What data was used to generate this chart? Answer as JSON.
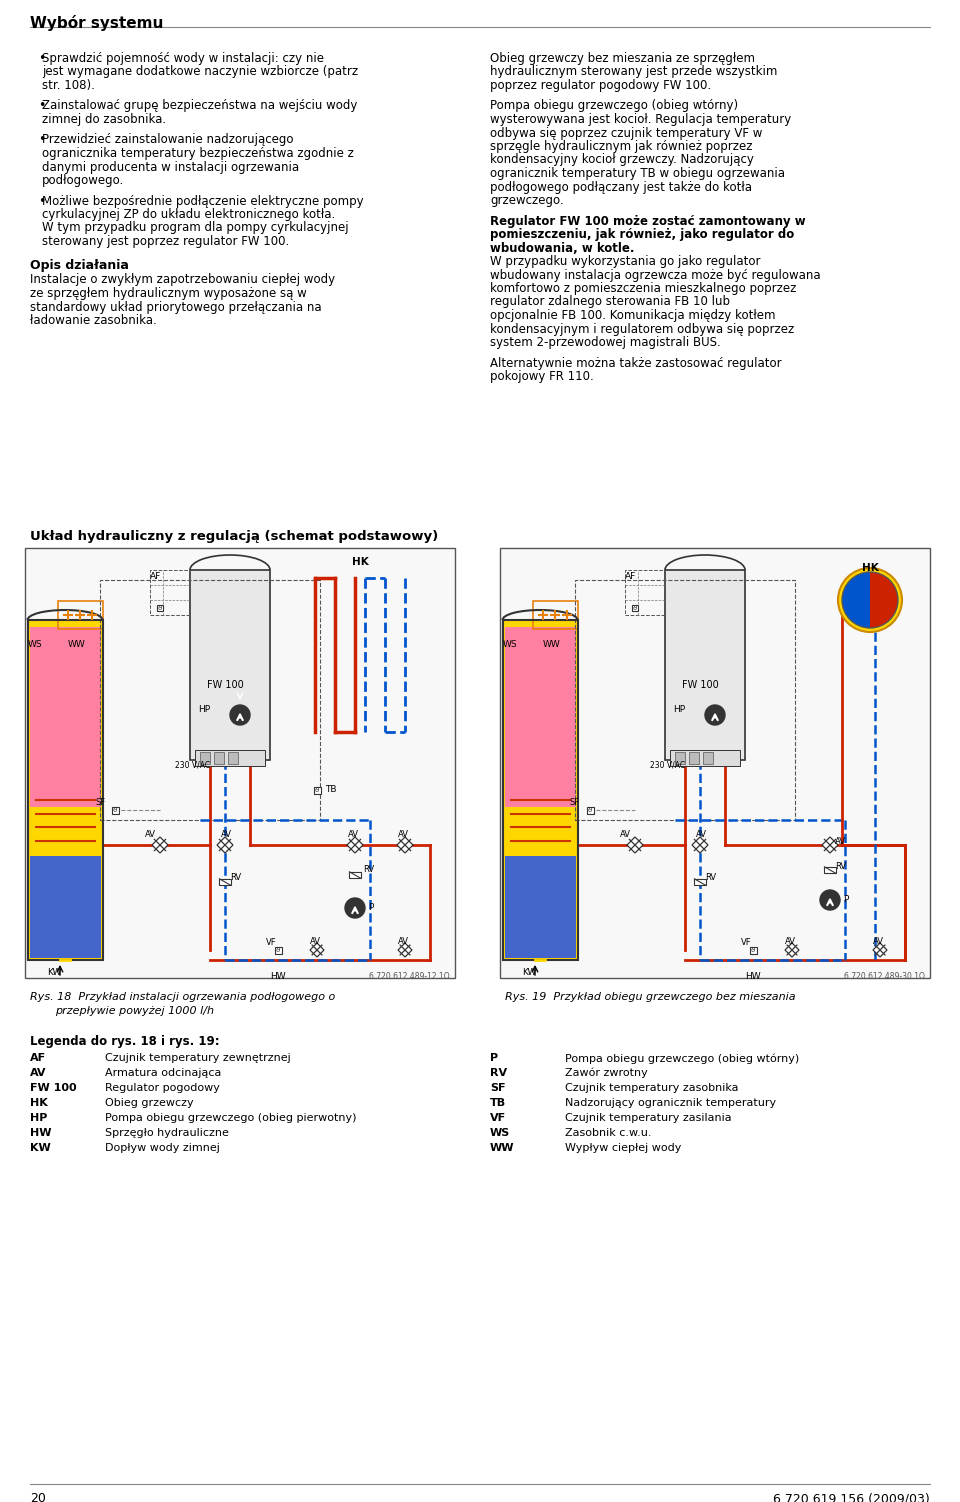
{
  "page_title": "Wybór systemu",
  "page_num_left": "20",
  "page_num_right": "6 720 619 156 (2009/03)",
  "background_color": "#ffffff",
  "text_color": "#1a1a1a",
  "left_column_bullets": [
    "Sprawdzić pojemność wody w instalacji: czy nie jest wymagane dodatkowe naczynie wzbiorcze (patrz str. 108).",
    "Zainstalować grupę bezpieczeństwa na wejściu wody zimnej do zasobnika.",
    "Przewidzieć zainstalowanie nadzorującego ogranicznika temperatury bezpieczeństwa zgodnie z danymi producenta w instalacji ogrzewania podłogowego.",
    "Możliwe bezpośrednie podłączenie elektryczne pompy cyrkulacyjnej ZP do układu elektronicznego kotła. W tym przypadku program dla pompy cyrkulacyjnej sterowany jest poprzez regulator FW 100."
  ],
  "left_column_section": "Opis działania",
  "left_column_section_text": "Instalacje o zwykłym zapotrzebowaniu ciepłej wody ze sprzęgłem hydraulicznym wyposażone są w standardowy układ priorytowego przełączania na ładowanie zasobnika.",
  "right_column_text_1": "Obieg grzewczy bez mieszania ze sprzęgłem hydraulicznym sterowany jest przede wszystkim poprzez regulator pogodowy FW 100.",
  "right_column_text_2": "Pompa obiegu grzewczego (obieg wtórny) wysterowywana jest kocioł. Regulacja temperatury odbywa się poprzez czujnik temperatury VF w sprzęgle hydraulicznym jak również poprzez kondensacyjny kocioł grzewczy. Nadzorujący ogranicznik temperatury TB w obiegu ogrzewania podłogowego podłączany jest także do kotła grzewczego.",
  "right_column_bold_text": "Regulator FW 100 może zostać zamontowany w pomieszczeniu, jak również, jako regulator do wbudowania, w kotle.",
  "right_column_bold_text_2": "W przypadku wykorzystania go jako regulator wbudowany instalacja ogrzewcza może być regulowana komfortowo z pomieszczenia mieszkalnego poprzez regulator zdalnego sterowania FB 10 lub opcjonalnie FB 100. Komunikacja między kotłem kondensacyjnym i regulatorem odbywa się poprzez system 2-przewodowej magistrali BUS.",
  "right_column_text_3": "Alternatywnie można także zastosować regulator pokojowy FR 110.",
  "diagram_title": "Układ hydrauliczny z regulacją (schemat podstawowy)",
  "fig18_caption_line1": "Rys. 18  Przykład instalacji ogrzewania podłogowego o",
  "fig18_caption_line2": "przepływie powyżej 1000 l/h",
  "fig19_caption": "Rys. 19  Przykład obiegu grzewczego bez mieszania",
  "fig_code": "6 720 612 489-12.1O",
  "fig_code2": "6 720 612 489-30.1O",
  "legend_title": "Legenda do rys. 18 i rys. 19:",
  "legend_items": [
    [
      "AF",
      "Czujnik temperatury zewnętrznej"
    ],
    [
      "AV",
      "Armatura odcinająca"
    ],
    [
      "FW 100",
      "Regulator pogodowy"
    ],
    [
      "HK",
      "Obieg grzewczy"
    ],
    [
      "HP",
      "Pompa obiegu grzewczego (obieg pierwotny)"
    ],
    [
      "HW",
      "Sprzęgło hydrauliczne"
    ],
    [
      "KW",
      "Dopływ wody zimnej"
    ],
    [
      "P",
      "Pompa obiegu grzewczego (obieg wtórny)"
    ],
    [
      "RV",
      "Zawór zwrotny"
    ],
    [
      "SF",
      "Czujnik temperatury zasobnika"
    ],
    [
      "TB",
      "Nadzorujący ogranicznik temperatury"
    ],
    [
      "VF",
      "Czujnik temperatury zasilania"
    ],
    [
      "WS",
      "Zasobnik c.w.u."
    ],
    [
      "WW",
      "Wypływ ciepłej wody"
    ]
  ],
  "orange_color": "#e8820c",
  "red_color": "#cc2200",
  "blue_color": "#0055cc",
  "dark_color": "#333333",
  "pipe_red": "#cc2200",
  "pipe_blue": "#0055cc"
}
